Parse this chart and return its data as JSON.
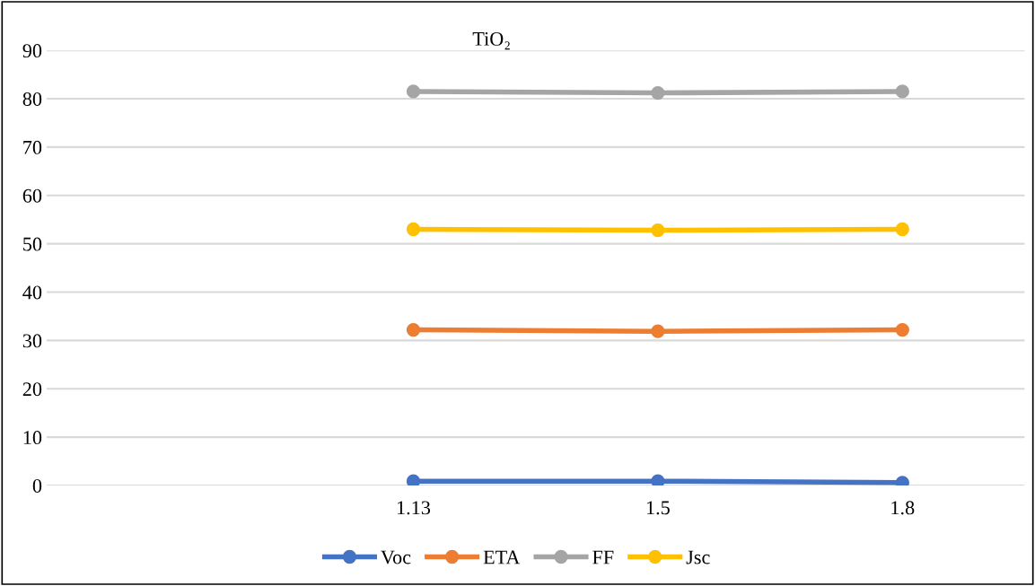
{
  "chart_data": {
    "type": "line",
    "title": "TiO₂",
    "categories": [
      null,
      "1.13",
      "1.5",
      "1.8"
    ],
    "series": [
      {
        "name": "Voc",
        "color": "#4472c4",
        "values": [
          null,
          0.9,
          0.9,
          0.6
        ]
      },
      {
        "name": "ETA",
        "color": "#ed7d31",
        "values": [
          null,
          32.2,
          31.9,
          32.2
        ]
      },
      {
        "name": "FF",
        "color": "#a5a5a5",
        "values": [
          null,
          81.5,
          81.2,
          81.5
        ]
      },
      {
        "name": "Jsc",
        "color": "#ffc000",
        "values": [
          null,
          53,
          52.8,
          53
        ]
      }
    ],
    "ylim": [
      0,
      90
    ],
    "yticks": [
      0,
      10,
      20,
      30,
      40,
      50,
      60,
      70,
      80,
      90
    ],
    "grid": "y",
    "legend": "bottom",
    "marker": "circle",
    "line_style": "solid"
  }
}
